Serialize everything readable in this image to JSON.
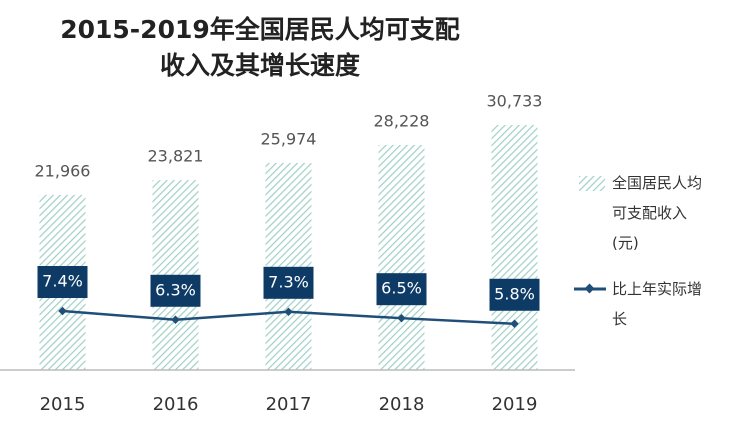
{
  "chart_data": {
    "type": "bar-line",
    "title": "2015-2019年全国居民人均可支配\n收入及其增长速度",
    "categories": [
      "2015",
      "2016",
      "2017",
      "2018",
      "2019"
    ],
    "series": [
      {
        "name": "全国居民人均可支配收入(元)",
        "type": "bar",
        "color": "#9fd0c6",
        "values": [
          21966,
          23821,
          25974,
          28228,
          30733
        ],
        "value_labels": [
          "21,966",
          "23,821",
          "25,974",
          "28,228",
          "30,733"
        ]
      },
      {
        "name": "比上年实际增长",
        "type": "line",
        "axis": "y2",
        "color": "#1f4e79",
        "values": [
          7.4,
          6.3,
          7.3,
          6.5,
          5.8
        ],
        "value_labels": [
          "7.4%",
          "6.3%",
          "7.3%",
          "6.5%",
          "5.8%"
        ]
      }
    ],
    "ylim": [
      0,
      35000
    ],
    "y2lim": [
      0,
      35
    ]
  }
}
